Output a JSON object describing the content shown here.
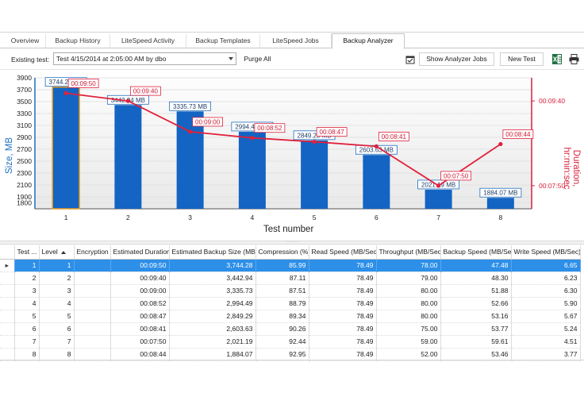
{
  "tabs": [
    {
      "label": "Overview"
    },
    {
      "label": "Backup History"
    },
    {
      "label": "LiteSpeed Activity"
    },
    {
      "label": "Backup Templates"
    },
    {
      "label": "LiteSpeed Jobs"
    },
    {
      "label": "Backup Analyzer",
      "active": true
    }
  ],
  "toolbar": {
    "existing_test_label": "Existing test:",
    "existing_test_value": "Test 4/15/2014 at 2:05:00 AM by dbo",
    "purge_all": "Purge All",
    "show_analyzer_jobs": "Show Analyzer Jobs",
    "new_test": "New Test",
    "excel_icon": "excel-export-icon",
    "print_icon": "printer-icon",
    "checklist_icon": "checklist-icon"
  },
  "chart_data": {
    "type": "bar",
    "xlabel": "Test number",
    "ylabel": "Size, MB",
    "y2label": "Duration, hr:min:sec",
    "categories": [
      "1",
      "2",
      "3",
      "4",
      "5",
      "6",
      "7",
      "8"
    ],
    "ylim": [
      1700,
      3900
    ],
    "yticks": [
      "3900",
      "3700",
      "3500",
      "3300",
      "3100",
      "2900",
      "2700",
      "2500",
      "2300",
      "2100",
      "1900",
      "1800"
    ],
    "y2ticks": [
      "00:09:40",
      "00:07:50"
    ],
    "series": [
      {
        "type": "bar",
        "color": "#1464c3",
        "values": [
          3744.28,
          3442.94,
          3335.73,
          2994.49,
          2849.29,
          2603.63,
          2021.19,
          1884.07
        ],
        "labels": [
          "3744.28 MB",
          "3442.94 MB",
          "3335.73 MB",
          "2994.49 MB",
          "2849.29 MB",
          "2603.63 MB",
          "2021.19 MB",
          "1884.07 MB"
        ]
      },
      {
        "type": "line",
        "color": "#e0213c",
        "values_seconds": [
          590,
          580,
          540,
          532,
          527,
          521,
          470,
          524
        ],
        "labels": [
          "00:09:50",
          "00:09:40",
          "00:09:00",
          "00:08:52",
          "00:08:47",
          "00:08:41",
          "00:07:50",
          "00:08:44"
        ]
      }
    ]
  },
  "grid": {
    "columns": [
      "Test ...",
      "Level",
      "Encryption",
      "Estimated Duration",
      "Estimated Backup Size (MB)",
      "Compression (%)",
      "Read Speed (MB/Sec)",
      "Throughput (MB/Sec)",
      "Backup Speed (MB/Sec)",
      "Write Speed (MB/Sec)"
    ],
    "rows": [
      [
        "1",
        "1",
        "",
        "00:09:50",
        "3,744.28",
        "85.99",
        "78.49",
        "78.00",
        "47.48",
        "6.65"
      ],
      [
        "2",
        "2",
        "",
        "00:09:40",
        "3,442.94",
        "87.11",
        "78.49",
        "79.00",
        "48.30",
        "6.23"
      ],
      [
        "3",
        "3",
        "",
        "00:09:00",
        "3,335.73",
        "87.51",
        "78.49",
        "80.00",
        "51.88",
        "6.30"
      ],
      [
        "4",
        "4",
        "",
        "00:08:52",
        "2,994.49",
        "88.79",
        "78.49",
        "80.00",
        "52.66",
        "5.90"
      ],
      [
        "5",
        "5",
        "",
        "00:08:47",
        "2,849.29",
        "89.34",
        "78.49",
        "80.00",
        "53.16",
        "5.67"
      ],
      [
        "6",
        "6",
        "",
        "00:08:41",
        "2,603.63",
        "90.26",
        "78.49",
        "75.00",
        "53.77",
        "5.24"
      ],
      [
        "7",
        "7",
        "",
        "00:07:50",
        "2,021.19",
        "92.44",
        "78.49",
        "59.00",
        "59.61",
        "4.51"
      ],
      [
        "8",
        "8",
        "",
        "00:08:44",
        "1,884.07",
        "92.95",
        "78.49",
        "52.00",
        "53.46",
        "3.77"
      ]
    ],
    "selected_row": 0,
    "row_indicator": "▸",
    "sort_column": "Level",
    "sort_direction": "ascending"
  },
  "splitter": "·····"
}
